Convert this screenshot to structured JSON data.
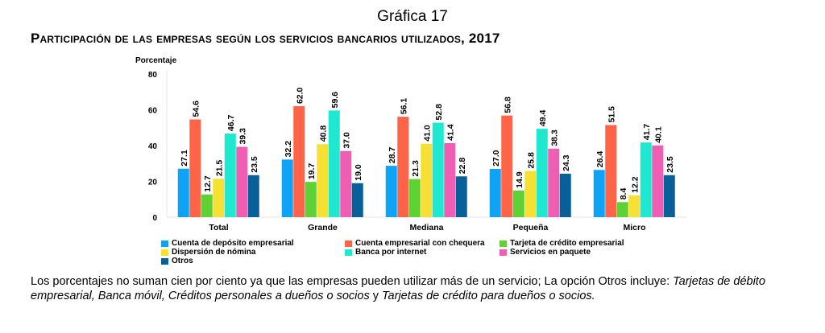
{
  "title": "Gráfica 17",
  "subtitle": "Participación de las empresas según los servicios bancarios utilizados, 2017",
  "note_plain": "Los porcentajes no suman cien por ciento ya que las empresas pueden utilizar más de un servicio; La opción Otros incluye:",
  "note_italic_1": "Tarjetas de débito empresarial, Banca móvil, Créditos personales a dueños o socios",
  "note_and": "y",
  "note_italic_2": "Tarjetas de crédito para dueños o socios.",
  "chart_data": {
    "type": "bar",
    "ylabel": "Porcentaje",
    "ylim": [
      0,
      80
    ],
    "yticks": [
      "0",
      "20",
      "40",
      "60",
      "80"
    ],
    "categories": [
      "Total",
      "Grande",
      "Mediana",
      "Pequeña",
      "Micro"
    ],
    "legend_position": "bottom",
    "series": [
      {
        "name": "Cuenta de depósito empresarial",
        "color": "#0FA3F5",
        "values": [
          27.1,
          32.2,
          28.7,
          27.0,
          26.4
        ],
        "labels": [
          "27.1",
          "32.2",
          "28.7",
          "27.0",
          "26.4"
        ]
      },
      {
        "name": "Cuenta empresarial con chequera",
        "color": "#FF6448",
        "values": [
          54.6,
          62.0,
          56.1,
          56.8,
          51.5
        ],
        "labels": [
          "54.6",
          "62.0",
          "56.1",
          "56.8",
          "51.5"
        ]
      },
      {
        "name": "Tarjeta de crédito empresarial",
        "color": "#5ED235",
        "values": [
          12.7,
          19.7,
          21.3,
          14.9,
          8.4
        ],
        "labels": [
          "12.7",
          "19.7",
          "21.3",
          "14.9",
          "8.4"
        ]
      },
      {
        "name": "Dispersión de nómina",
        "color": "#F7E034",
        "values": [
          21.5,
          40.8,
          41.0,
          25.8,
          12.2
        ],
        "labels": [
          "21.5",
          "40.8",
          "41.0",
          "25.8",
          "12.2"
        ]
      },
      {
        "name": "Banca por internet",
        "color": "#1EE8CF",
        "values": [
          46.7,
          59.6,
          52.8,
          49.4,
          41.7
        ],
        "labels": [
          "46.7",
          "59.6",
          "52.8",
          "49.4",
          "41.7"
        ]
      },
      {
        "name": "Servicios en paquete",
        "color": "#EE5FB3",
        "values": [
          39.3,
          37.0,
          41.4,
          38.3,
          40.1
        ],
        "labels": [
          "39.3",
          "37.0",
          "41.4",
          "38.3",
          "40.1"
        ]
      },
      {
        "name": "Otros",
        "color": "#07609A",
        "values": [
          23.5,
          19.0,
          22.8,
          24.3,
          23.5
        ],
        "labels": [
          "23.5",
          "19.0",
          "22.8",
          "24.3",
          "23.5"
        ]
      }
    ]
  }
}
